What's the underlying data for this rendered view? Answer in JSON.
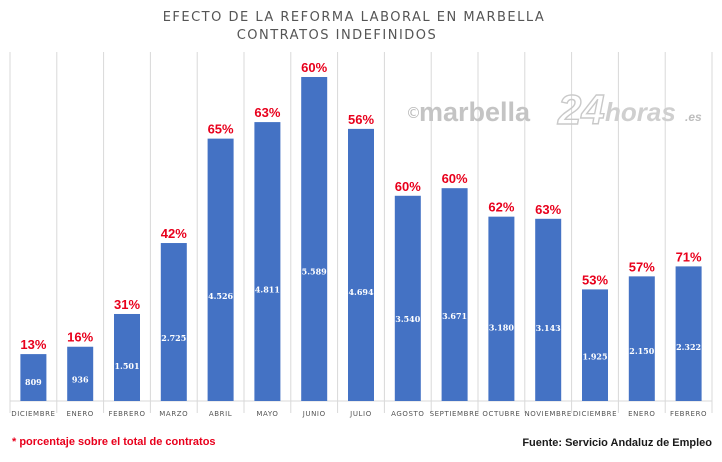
{
  "colors": {
    "bar": "#4472c4",
    "percent_label": "#e8001c",
    "title": "#555555",
    "gridline": "#d9d9d9",
    "footnote": "#e8001c",
    "source": "#1a1a1a"
  },
  "watermark": {
    "copyright": "©",
    "name": "marbella",
    "number": "24",
    "suffix": "horas",
    "tld": ".es"
  },
  "footer": {
    "note": "* porcentaje sobre el total de contratos",
    "source": "Fuente: Servicio Andaluz de Empleo"
  },
  "chart_data": {
    "type": "bar",
    "title": "EFECTO DE LA REFORMA LABORAL EN MARBELLA",
    "subtitle": "CONTRATOS INDEFINIDOS",
    "xlabel": "",
    "ylabel": "",
    "ylim": [
      0,
      6000
    ],
    "grid": "vertical",
    "legend": "none",
    "categories": [
      "DICIEMBRE",
      "ENERO",
      "FEBRERO",
      "MARZO",
      "ABRIL",
      "MAYO",
      "JUNIO",
      "JULIO",
      "AGOSTO",
      "SEPTIEMBRE",
      "OCTUBRE",
      "NOVIEMBRE",
      "DICIEMBRE",
      "ENERO",
      "FEBRERO"
    ],
    "values": [
      809,
      936,
      1501,
      2725,
      4526,
      4811,
      5589,
      4694,
      3540,
      3671,
      3180,
      3143,
      1925,
      2150,
      2322
    ],
    "value_labels": [
      "809",
      "936",
      "1.501",
      "2.725",
      "4.526",
      "4.811",
      "5.589",
      "4.694",
      "3.540",
      "3.671",
      "3.180",
      "3.143",
      "1.925",
      "2.150",
      "2.322"
    ],
    "percent_labels": [
      "13%",
      "16%",
      "31%",
      "42%",
      "65%",
      "63%",
      "60%",
      "56%",
      "60%",
      "60%",
      "62%",
      "63%",
      "53%",
      "57%",
      "71%"
    ]
  }
}
